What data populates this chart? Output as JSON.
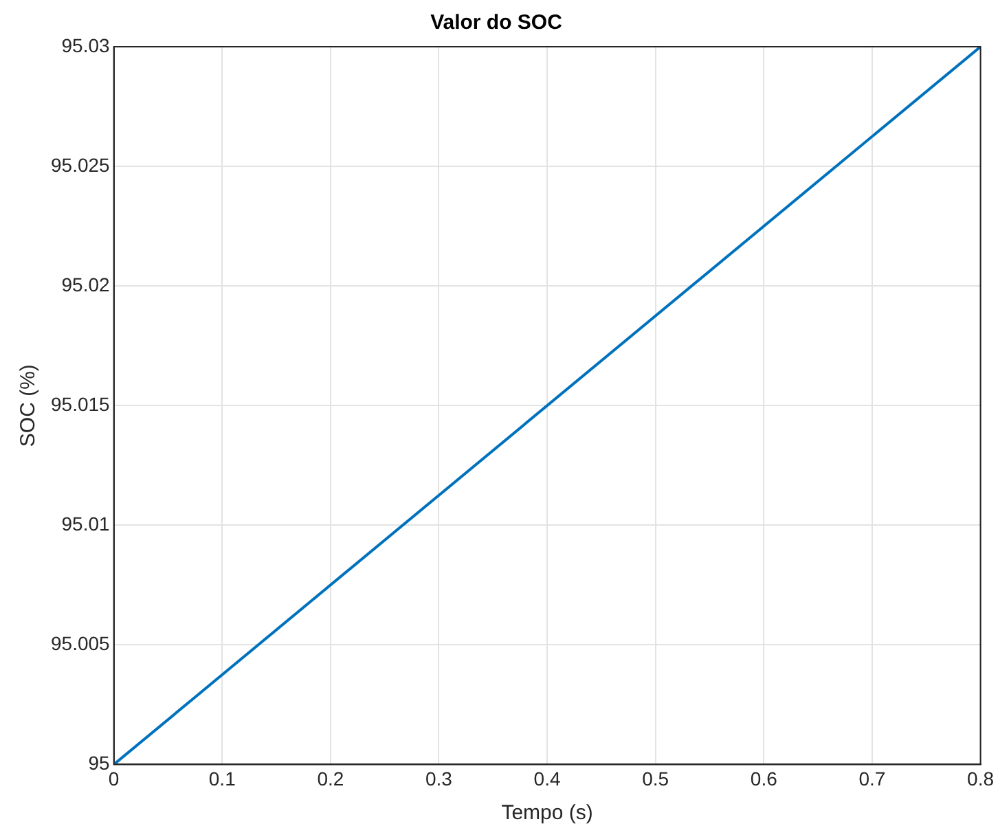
{
  "chart_data": {
    "type": "line",
    "title": "Valor do SOC",
    "xlabel": "Tempo (s)",
    "ylabel": "SOC (%)",
    "x": [
      0,
      0.8
    ],
    "series": [
      {
        "color": "#0072bd",
        "values": [
          95,
          95.03
        ]
      }
    ],
    "xlim": [
      0,
      0.8
    ],
    "xticks": [
      0,
      0.1,
      0.2,
      0.3,
      0.4,
      0.5,
      0.6,
      0.7,
      0.8
    ],
    "ylim": [
      95,
      95.03
    ],
    "yticks": [
      95,
      95.005,
      95.01,
      95.015,
      95.02,
      95.025,
      95.03
    ],
    "grid": true,
    "legend": false,
    "marker": "none",
    "line_style": "solid"
  }
}
